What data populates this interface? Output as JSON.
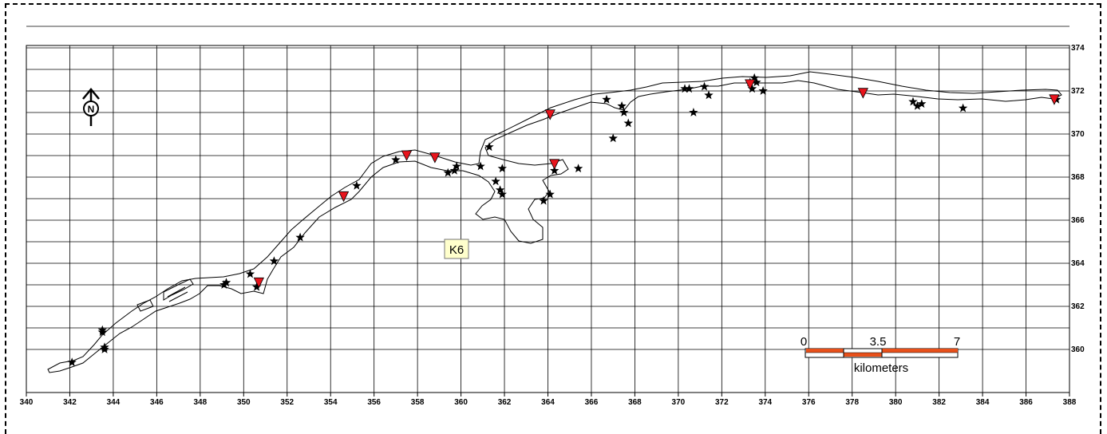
{
  "map": {
    "x_ticks": [
      "340",
      "342",
      "344",
      "346",
      "348",
      "350",
      "352",
      "354",
      "356",
      "358",
      "360",
      "362",
      "364",
      "366",
      "368",
      "370",
      "372",
      "374",
      "376",
      "378",
      "380",
      "382",
      "384",
      "386",
      "388"
    ],
    "y_ticks": [
      "374",
      "372",
      "370",
      "368",
      "366",
      "364",
      "362",
      "360"
    ],
    "area_label": "K6",
    "north_label": "N",
    "scale_bar": {
      "left": "0",
      "mid": "3.5",
      "right": "7",
      "units": "kilometers"
    },
    "colors": {
      "triangle": "#e8141c",
      "scale_orange": "#e8501a",
      "label_bg": "#ffffcc",
      "grid": "#000000"
    },
    "x_range": [
      340,
      388
    ],
    "y_range": [
      358,
      374
    ],
    "stars": [
      [
        342.1,
        359.4
      ],
      [
        343.6,
        360.0
      ],
      [
        343.6,
        360.1
      ],
      [
        343.5,
        360.8
      ],
      [
        343.5,
        360.9
      ],
      [
        349.1,
        363.0
      ],
      [
        349.2,
        363.1
      ],
      [
        350.3,
        363.5
      ],
      [
        350.6,
        362.9
      ],
      [
        351.4,
        364.1
      ],
      [
        352.6,
        365.2
      ],
      [
        355.2,
        367.6
      ],
      [
        357.0,
        368.8
      ],
      [
        359.4,
        368.2
      ],
      [
        359.7,
        368.3
      ],
      [
        359.8,
        368.5
      ],
      [
        360.9,
        368.5
      ],
      [
        361.3,
        369.4
      ],
      [
        361.6,
        367.8
      ],
      [
        361.8,
        367.4
      ],
      [
        361.9,
        368.4
      ],
      [
        361.9,
        367.2
      ],
      [
        364.3,
        368.3
      ],
      [
        364.1,
        367.2
      ],
      [
        363.8,
        366.9
      ],
      [
        365.4,
        368.4
      ],
      [
        366.7,
        371.6
      ],
      [
        367.0,
        369.8
      ],
      [
        367.4,
        371.3
      ],
      [
        367.5,
        371.0
      ],
      [
        367.7,
        370.5
      ],
      [
        370.3,
        372.1
      ],
      [
        370.5,
        372.1
      ],
      [
        370.7,
        371.0
      ],
      [
        371.2,
        372.2
      ],
      [
        371.4,
        371.8
      ],
      [
        373.3,
        372.4
      ],
      [
        373.4,
        372.1
      ],
      [
        373.5,
        372.6
      ],
      [
        373.6,
        372.4
      ],
      [
        373.9,
        372.0
      ],
      [
        380.8,
        371.5
      ],
      [
        381.0,
        371.3
      ],
      [
        381.2,
        371.4
      ],
      [
        383.1,
        371.2
      ],
      [
        387.4,
        371.6
      ]
    ],
    "triangles": [
      [
        350.7,
        363.1
      ],
      [
        354.6,
        367.1
      ],
      [
        357.5,
        369.0
      ],
      [
        358.8,
        368.9
      ],
      [
        364.1,
        370.9
      ],
      [
        364.3,
        368.6
      ],
      [
        373.3,
        372.3
      ],
      [
        378.5,
        371.9
      ],
      [
        387.3,
        371.6
      ]
    ]
  }
}
